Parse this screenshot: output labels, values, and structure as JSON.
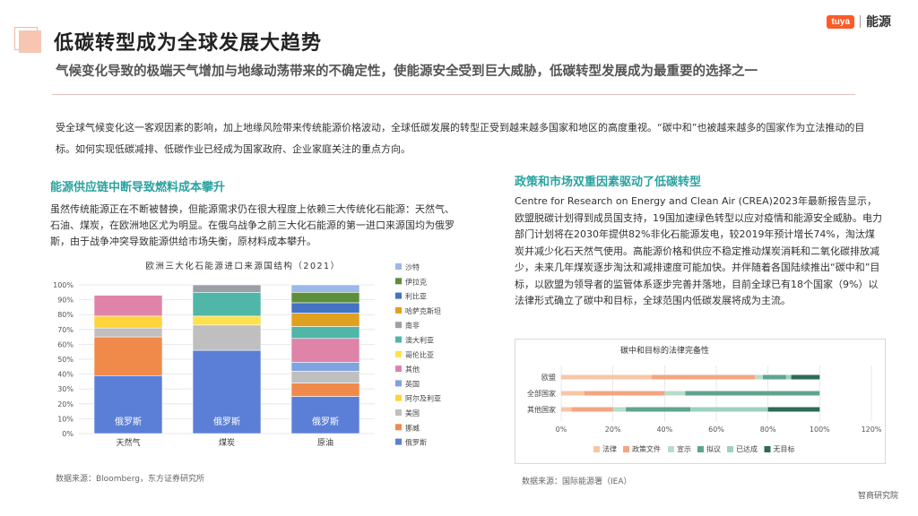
{
  "title": "低碳转型成为全球发展大趋势",
  "subtitle": "气候变化导致的极端天气增加与地缘动荡带来的不确定性，使能源安全受到巨大威胁，低碳转型发展成为最重要的选择之一",
  "brand": {
    "badge": "tuya",
    "name": "能源"
  },
  "intro": "受全球气候变化这一客观因素的影响，加上地缘风险带来传统能源价格波动，全球低碳发展的转型正受到越来越多国家和地区的高度重视。“碳中和”也被越来越多的国家作为立法推动的目标。如何实现低碳减排、低碳作业已经成为国家政府、企业家庭关注的重点方向。",
  "left": {
    "heading": "能源供应链中断导致燃料成本攀升",
    "paragraph": "虽然传统能源正在不断被替换，但能源需求仍在很大程度上依赖三大传统化石能源：天然气、石油、煤炭，在欧洲地区尤为明显。在俄乌战争之前三大化石能源的第一进口来源国均为俄罗斯，由于战争冲突导致能源供给市场失衡，原材料成本攀升。",
    "source": "数据来源：Bloomberg，东方证券研究所"
  },
  "right": {
    "heading": "政策和市场双重因素驱动了低碳转型",
    "paragraph": "Centre for Research on Energy and Clean Air (CREA)2023年最新报告显示，欧盟脱碳计划得到成员国支持，19国加速绿色转型以应对疫情和能源安全威胁。电力部门计划将在2030年提供82%非化石能源发电，较2019年预计增长74%，淘汰煤炭并减少化石天然气使用。高能源价格和供应不稳定推动煤炭消耗和二氧化碳排放减少，未来几年煤炭逐步淘汰和减排速度可能加快。并伴随着各国陆续推出“碳中和”目标，以欧盟为领导者的监管体系逐步完善并落地，目前全球已有18个国家（9%）以法律形式确立了碳中和目标，全球范围内低碳发展将成为主流。",
    "source": "数据来源：国际能源署（IEA）"
  },
  "footer": "智商研究院",
  "chart_data": [
    {
      "type": "bar",
      "stacked": true,
      "title": "欧洲三大化石能源进口来源国结构（2021）",
      "categories": [
        "天然气",
        "煤炭",
        "原油"
      ],
      "ylim": [
        0,
        100
      ],
      "yticks": [
        "0%",
        "10%",
        "20%",
        "30%",
        "40%",
        "50%",
        "60%",
        "70%",
        "80%",
        "90%",
        "100%"
      ],
      "legend_position": "right",
      "series": [
        {
          "name": "俄罗斯",
          "color": "#5b7fd6",
          "values": [
            39,
            56,
            25
          ]
        },
        {
          "name": "挪威",
          "color": "#f08a4b",
          "values": [
            26,
            0,
            9
          ]
        },
        {
          "name": "美国",
          "color": "#bfbfbf",
          "values": [
            6,
            17,
            8
          ]
        },
        {
          "name": "阿尔及利亚",
          "color": "#ffd43b",
          "values": [
            8,
            0,
            0
          ]
        },
        {
          "name": "英国",
          "color": "#7fa2e0",
          "values": [
            0,
            0,
            6
          ]
        },
        {
          "name": "其他",
          "color": "#e083a8",
          "values": [
            14,
            0,
            16
          ]
        },
        {
          "name": "哥伦比亚",
          "color": "#ffe14d",
          "values": [
            0,
            6,
            0
          ]
        },
        {
          "name": "澳大利亚",
          "color": "#4fb6a8",
          "values": [
            0,
            16,
            8
          ]
        },
        {
          "name": "南非",
          "color": "#9aa0a6",
          "values": [
            0,
            5,
            0
          ]
        },
        {
          "name": "哈萨克斯坦",
          "color": "#e0a020",
          "values": [
            0,
            0,
            9
          ]
        },
        {
          "name": "利比亚",
          "color": "#4472c4",
          "values": [
            0,
            0,
            7
          ]
        },
        {
          "name": "伊拉克",
          "color": "#5b8f3a",
          "values": [
            0,
            0,
            7
          ]
        },
        {
          "name": "沙特",
          "color": "#9bb7ec",
          "values": [
            0,
            0,
            5
          ]
        }
      ],
      "bar_labels": [
        "俄罗斯",
        "俄罗斯",
        "俄罗斯"
      ]
    },
    {
      "type": "bar",
      "orientation": "horizontal",
      "stacked": true,
      "title": "碳中和目标的法律完备性",
      "categories": [
        "欧盟",
        "全部国家",
        "其他国家"
      ],
      "xlim": [
        0,
        120
      ],
      "xticks": [
        "0%",
        "20%",
        "40%",
        "60%",
        "80%",
        "100%",
        "120%"
      ],
      "legend_position": "bottom",
      "series": [
        {
          "name": "法律",
          "color": "#f7c7a3",
          "values": [
            35,
            9,
            4
          ]
        },
        {
          "name": "政策文件",
          "color": "#f4a582",
          "values": [
            40,
            31,
            16
          ]
        },
        {
          "name": "宣示",
          "color": "#b9dccb",
          "values": [
            3,
            8,
            5
          ]
        },
        {
          "name": "拟议",
          "color": "#5fa58e",
          "values": [
            9,
            52,
            25
          ]
        },
        {
          "name": "已达成",
          "color": "#9ed1c0",
          "values": [
            2,
            0,
            30
          ]
        },
        {
          "name": "无目标",
          "color": "#2e6b56",
          "values": [
            11,
            0,
            20
          ]
        }
      ]
    }
  ]
}
